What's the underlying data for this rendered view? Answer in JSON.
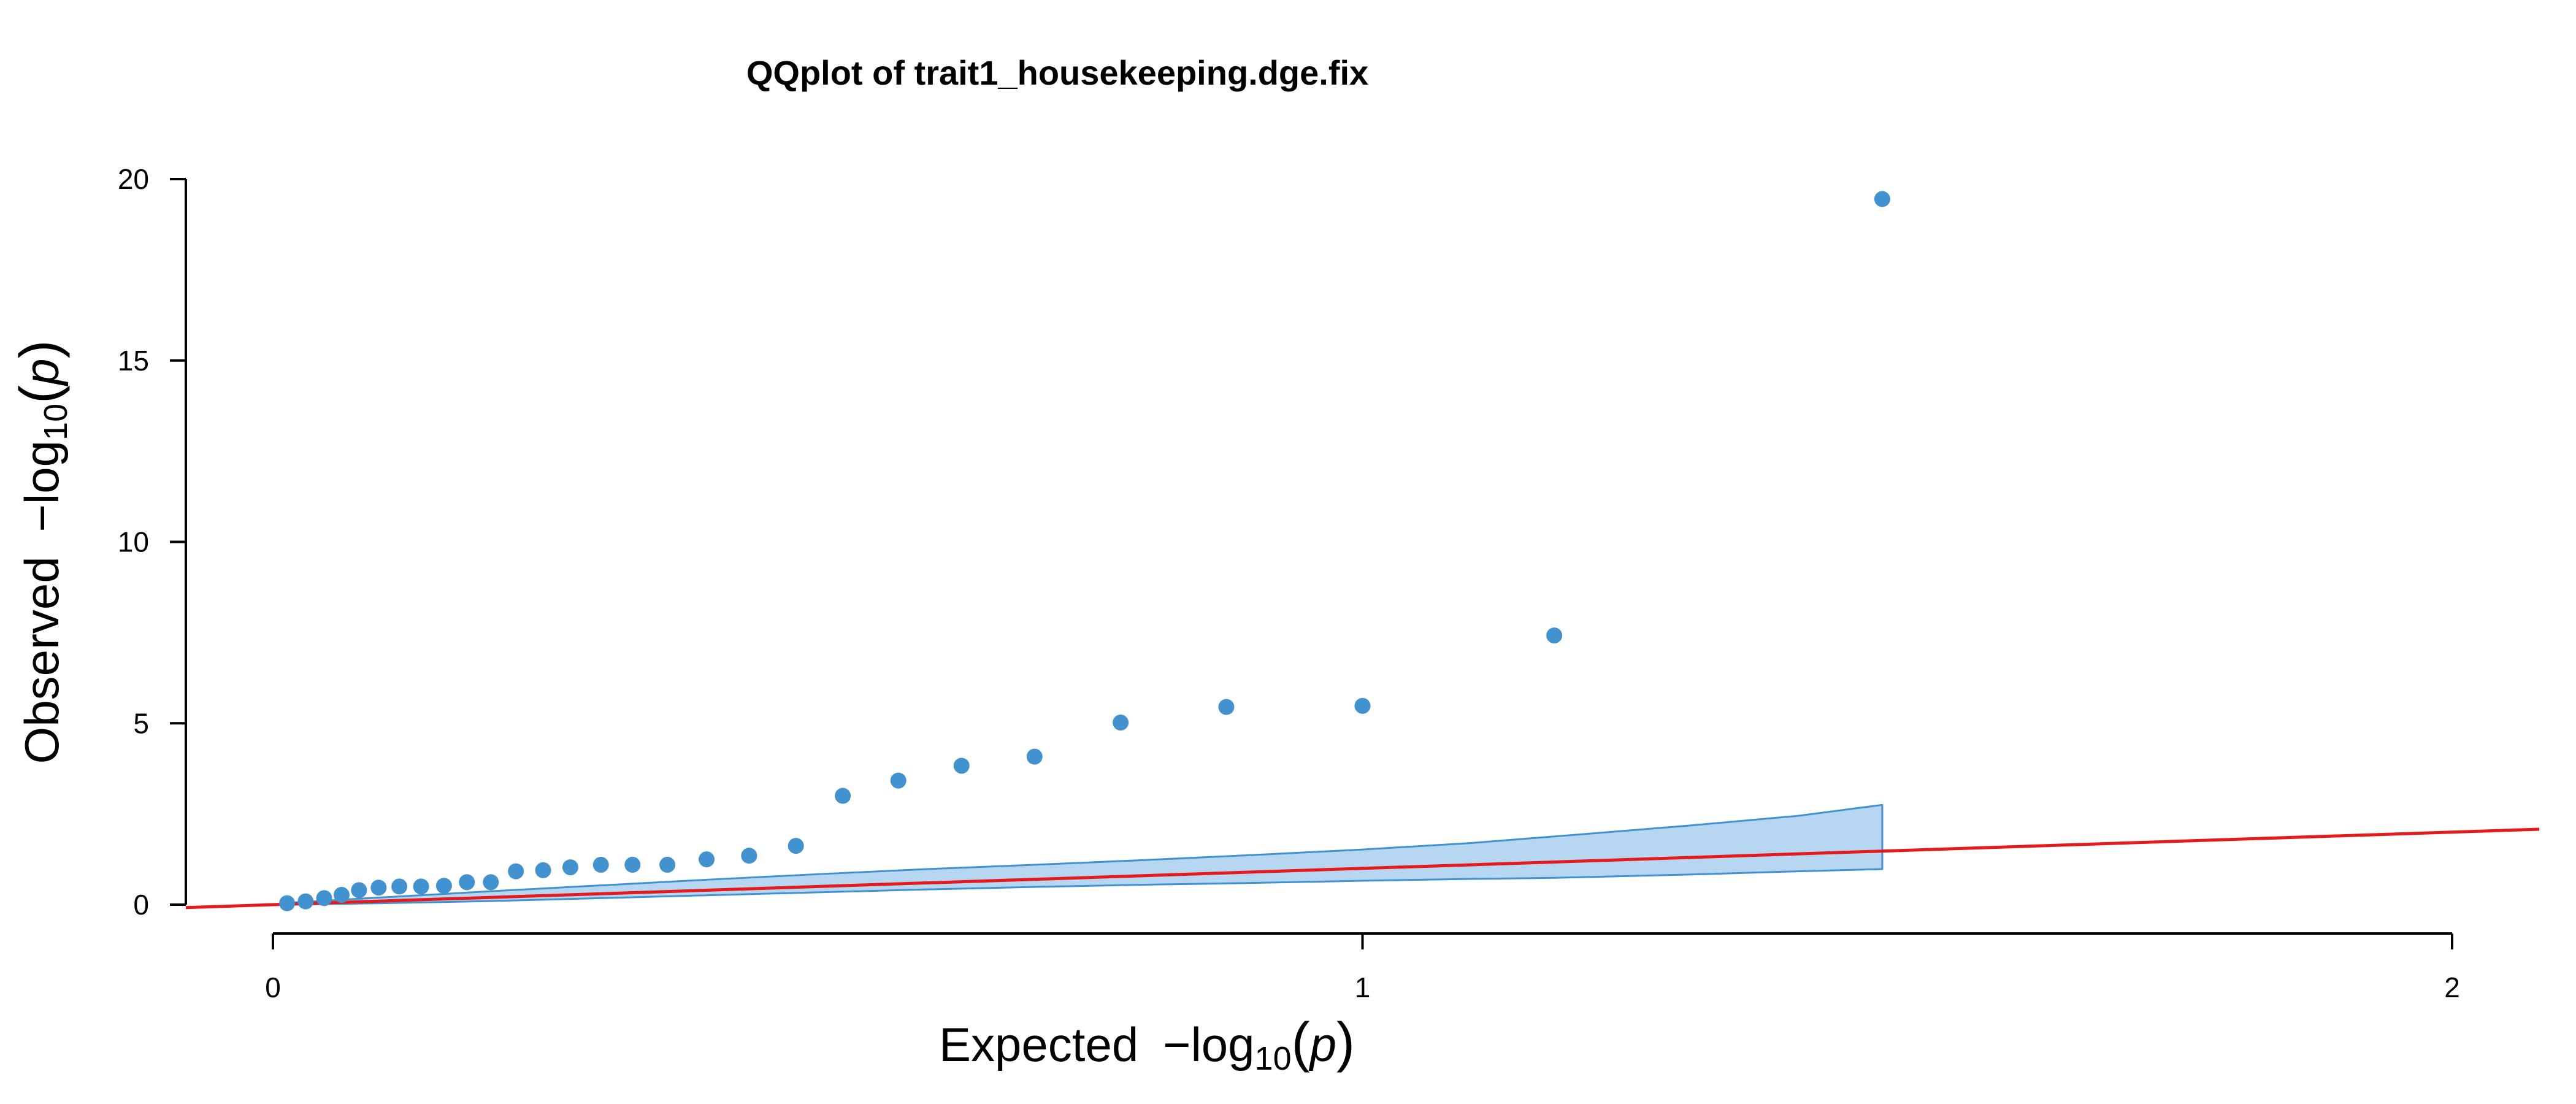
{
  "chart_data": {
    "type": "scatter",
    "title": "QQplot of trait1_housekeeping.dge.fix",
    "xlabel": {
      "prefix": "Expected",
      "minus": "−",
      "log": "log",
      "sub": "10",
      "open": "(",
      "var": "p",
      "close": ")"
    },
    "ylabel": {
      "prefix": "Observed",
      "minus": "−",
      "log": "log",
      "sub": "10",
      "open": "(",
      "var": "p",
      "close": ")"
    },
    "xlim": [
      0,
      2
    ],
    "ylim": [
      0,
      20
    ],
    "x_ticks": [
      0,
      1,
      2
    ],
    "y_ticks": [
      0,
      5,
      10,
      15,
      20
    ],
    "grid": false,
    "point_color": "#4292d0",
    "band_fill": "#b7d6f1",
    "band_stroke": "#4292d0",
    "diagonal_color": "#e41a1c",
    "points": [
      {
        "x": 0.013,
        "y": 0.04
      },
      {
        "x": 0.03,
        "y": 0.09
      },
      {
        "x": 0.047,
        "y": 0.18
      },
      {
        "x": 0.063,
        "y": 0.27
      },
      {
        "x": 0.079,
        "y": 0.4
      },
      {
        "x": 0.097,
        "y": 0.47
      },
      {
        "x": 0.116,
        "y": 0.5
      },
      {
        "x": 0.136,
        "y": 0.5
      },
      {
        "x": 0.157,
        "y": 0.52
      },
      {
        "x": 0.178,
        "y": 0.62
      },
      {
        "x": 0.2,
        "y": 0.62
      },
      {
        "x": 0.223,
        "y": 0.92
      },
      {
        "x": 0.248,
        "y": 0.95
      },
      {
        "x": 0.273,
        "y": 1.03
      },
      {
        "x": 0.301,
        "y": 1.1
      },
      {
        "x": 0.33,
        "y": 1.1
      },
      {
        "x": 0.362,
        "y": 1.1
      },
      {
        "x": 0.398,
        "y": 1.25
      },
      {
        "x": 0.437,
        "y": 1.35
      },
      {
        "x": 0.48,
        "y": 1.62
      },
      {
        "x": 0.523,
        "y": 3.0
      },
      {
        "x": 0.574,
        "y": 3.42
      },
      {
        "x": 0.632,
        "y": 3.83
      },
      {
        "x": 0.699,
        "y": 4.08
      },
      {
        "x": 0.778,
        "y": 5.02
      },
      {
        "x": 0.875,
        "y": 5.45
      },
      {
        "x": 1.0,
        "y": 5.48
      },
      {
        "x": 1.176,
        "y": 7.42
      },
      {
        "x": 1.477,
        "y": 19.45
      }
    ],
    "band": {
      "x": [
        0.013,
        0.1,
        0.2,
        0.3,
        0.4,
        0.5,
        0.6,
        0.7,
        0.8,
        0.9,
        1.0,
        1.1,
        1.176,
        1.3,
        1.4,
        1.477
      ],
      "lower": [
        0.0,
        0.04,
        0.1,
        0.18,
        0.26,
        0.34,
        0.42,
        0.49,
        0.55,
        0.6,
        0.66,
        0.71,
        0.74,
        0.83,
        0.92,
        0.98
      ],
      "upper": [
        0.05,
        0.2,
        0.37,
        0.53,
        0.69,
        0.84,
        0.98,
        1.1,
        1.23,
        1.37,
        1.52,
        1.7,
        1.88,
        2.18,
        2.45,
        2.75
      ]
    }
  }
}
